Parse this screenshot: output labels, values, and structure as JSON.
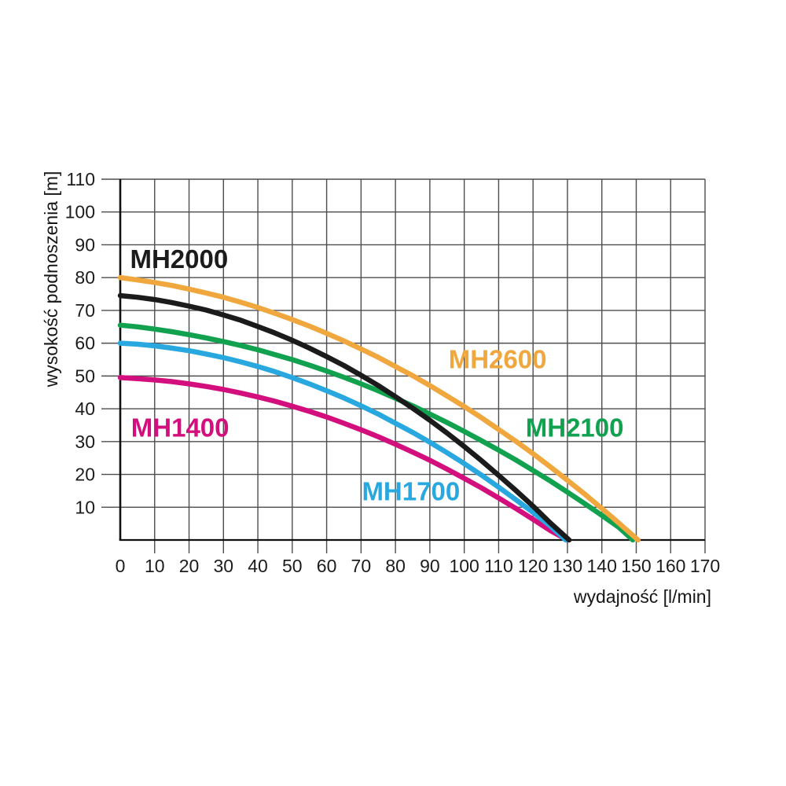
{
  "chart_data": {
    "type": "line",
    "title": "",
    "xlabel": "wydajność [l/min]",
    "ylabel": "wysokość podnoszenia [m]",
    "xlim": [
      0,
      170
    ],
    "ylim": [
      0,
      110
    ],
    "x_ticks": [
      0,
      10,
      20,
      30,
      40,
      50,
      60,
      70,
      80,
      90,
      100,
      110,
      120,
      130,
      140,
      150,
      160,
      170
    ],
    "y_ticks": [
      10,
      20,
      30,
      40,
      50,
      60,
      70,
      80,
      90,
      100,
      110
    ],
    "grid": true,
    "legend_position": "inline-labels",
    "colors": {
      "grid": "#4d4d4d",
      "axis": "#111111",
      "tick_text": "#1c1c1c",
      "axis_title_text": "#161616",
      "background": "#ffffff"
    },
    "series": [
      {
        "name": "MH1400",
        "color": "#d30f7d",
        "x": [
          0,
          5,
          10,
          15,
          20,
          25,
          30,
          35,
          40,
          45,
          50,
          55,
          60,
          65,
          70,
          75,
          80,
          85,
          90,
          95,
          100,
          105,
          110,
          115,
          120,
          125,
          130
        ],
        "y": [
          49.5,
          49.2,
          48.8,
          48.3,
          47.6,
          46.8,
          45.9,
          44.8,
          43.6,
          42.3,
          40.8,
          39.2,
          37.5,
          35.6,
          33.6,
          31.5,
          29.2,
          26.8,
          24.3,
          21.6,
          18.8,
          15.9,
          12.8,
          9.6,
          6.3,
          2.9,
          0
        ],
        "label": {
          "x": 17.4,
          "y": 34.1
        }
      },
      {
        "name": "MH1700",
        "color": "#29a8e0",
        "x": [
          0,
          5,
          10,
          15,
          20,
          25,
          30,
          35,
          40,
          45,
          50,
          55,
          60,
          65,
          70,
          75,
          80,
          85,
          90,
          95,
          100,
          105,
          110,
          115,
          120,
          125,
          129.5
        ],
        "y": [
          60,
          59.7,
          59.2,
          58.5,
          57.7,
          56.7,
          55.6,
          54.3,
          52.9,
          51.3,
          49.5,
          47.6,
          45.5,
          43.3,
          40.9,
          38.4,
          35.6,
          32.8,
          29.8,
          26.6,
          23.3,
          19.8,
          16.1,
          12.3,
          8.4,
          4.3,
          0
        ],
        "label": {
          "x": 84.5,
          "y": 14.7
        }
      },
      {
        "name": "MH2100",
        "color": "#11a14f",
        "x": [
          0,
          5,
          10,
          15,
          20,
          25,
          30,
          35,
          40,
          45,
          50,
          55,
          60,
          65,
          70,
          75,
          80,
          85,
          90,
          95,
          100,
          105,
          110,
          115,
          120,
          125,
          130,
          135,
          140,
          145,
          149
        ],
        "y": [
          65.5,
          65,
          64.3,
          63.5,
          62.6,
          61.6,
          60.5,
          59.3,
          58,
          56.5,
          55,
          53.3,
          51.5,
          49.6,
          47.6,
          45.5,
          43.2,
          40.9,
          38.4,
          35.8,
          33.1,
          30.3,
          27.4,
          24.4,
          21.2,
          18,
          14.6,
          11.1,
          7.5,
          3.8,
          0
        ],
        "label": {
          "x": 132.1,
          "y": 34.1
        }
      },
      {
        "name": "MH2000",
        "color": "#1b1b1b",
        "x": [
          0,
          5,
          10,
          15,
          20,
          25,
          30,
          35,
          40,
          45,
          50,
          55,
          60,
          65,
          70,
          75,
          80,
          85,
          90,
          95,
          100,
          105,
          110,
          115,
          120,
          125,
          130.5
        ],
        "y": [
          74.5,
          74,
          73.3,
          72.4,
          71.3,
          70.1,
          68.6,
          67,
          65.1,
          63.1,
          60.9,
          58.5,
          55.9,
          53.2,
          50.2,
          47.1,
          43.7,
          40.2,
          36.5,
          32.6,
          28.5,
          24.2,
          19.7,
          15.1,
          10.3,
          5.2,
          0
        ],
        "label": {
          "x": 17.1,
          "y": 85.5
        }
      },
      {
        "name": "MH2600",
        "color": "#efa73e",
        "x": [
          0,
          5,
          10,
          15,
          20,
          25,
          30,
          35,
          40,
          45,
          50,
          55,
          60,
          65,
          70,
          75,
          80,
          85,
          90,
          95,
          100,
          105,
          110,
          115,
          120,
          125,
          130,
          135,
          140,
          145,
          150.5
        ],
        "y": [
          80,
          79.3,
          78.5,
          77.6,
          76.5,
          75.3,
          74,
          72.5,
          70.9,
          69.1,
          67.2,
          65.2,
          63,
          60.7,
          58.2,
          55.7,
          52.9,
          50.1,
          47.1,
          43.9,
          40.7,
          37.3,
          33.7,
          30.1,
          26.3,
          22.3,
          18.2,
          14,
          9.6,
          5.1,
          0
        ],
        "label": {
          "x": 109.7,
          "y": 55
        }
      }
    ]
  }
}
